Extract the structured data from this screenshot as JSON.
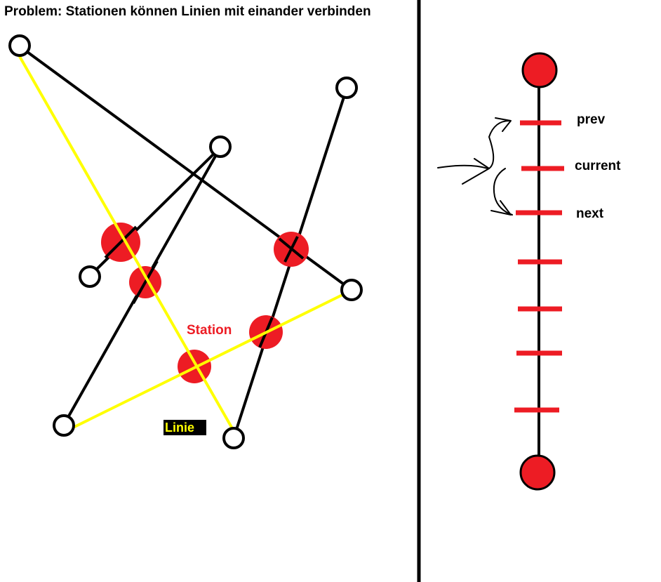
{
  "title": "Problem: Stationen können Linien mit einander verbinden",
  "labels": {
    "station": "Station",
    "linie": "Linie",
    "prev": "prev",
    "current": "current",
    "next": "next"
  },
  "colors": {
    "station": "#ed1c24",
    "linie": "#ffff00",
    "line": "#000000"
  }
}
